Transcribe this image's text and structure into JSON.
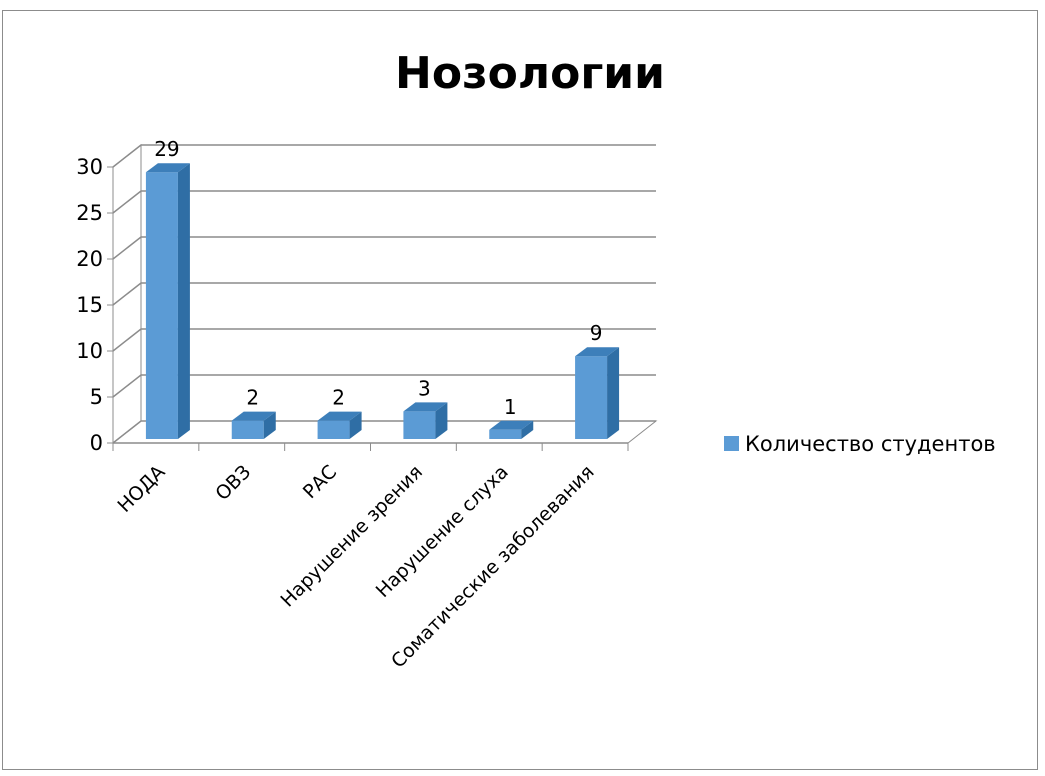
{
  "chart_data": {
    "type": "bar",
    "title": "Нозологии",
    "categories": [
      "НОДА",
      "ОВЗ",
      "РАС",
      "Нарушение зрения",
      "Нарушение слуха",
      "Соматические заболевания"
    ],
    "series": [
      {
        "name": "Количество студентов",
        "values": [
          29,
          2,
          2,
          3,
          1,
          9
        ],
        "color": "#5b9bd5"
      }
    ],
    "ylim": [
      0,
      30
    ],
    "yticks": [
      0,
      5,
      10,
      15,
      20,
      25,
      30
    ],
    "grid": true,
    "legend_position": "right",
    "style": "3d-column"
  }
}
